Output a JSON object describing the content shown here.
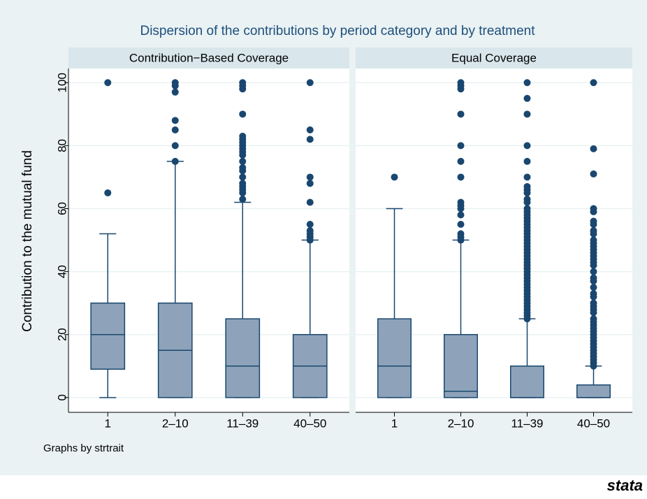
{
  "chart_data": {
    "type": "box",
    "title": "Dispersion of the contributions by period category and by treatment",
    "ylabel": "Contribution to the mutual fund",
    "note": "Graphs by strtrait",
    "logo": "stata",
    "categories": [
      "1",
      "2–10",
      "11–39",
      "40–50"
    ],
    "ylim": [
      -4.7,
      104.5
    ],
    "yticks": [
      0,
      20,
      40,
      60,
      80,
      100
    ],
    "grid": true,
    "box_color": "#8ea3b9",
    "line_color": "#1a476f",
    "panels": [
      {
        "title": "Contribution−Based Coverage",
        "boxes": [
          {
            "min": 0,
            "q1": 9,
            "median": 20,
            "q3": 30,
            "max": 52,
            "outliers": [
              65,
              100
            ]
          },
          {
            "min": 0,
            "q1": 0,
            "median": 15,
            "q3": 30,
            "max": 75,
            "outliers": [
              75,
              80,
              85,
              88,
              97,
              99,
              100
            ]
          },
          {
            "min": 0,
            "q1": 0,
            "median": 10,
            "q3": 25,
            "max": 62,
            "outliers": [
              63,
              65,
              66,
              67,
              68,
              70,
              72,
              73,
              75,
              77,
              78,
              79,
              80,
              81,
              82,
              83,
              90,
              98,
              99,
              100
            ]
          },
          {
            "min": 0,
            "q1": 0,
            "median": 10,
            "q3": 20,
            "max": 50,
            "outliers": [
              50,
              51,
              52,
              53,
              55,
              62,
              68,
              70,
              82,
              85,
              100
            ]
          }
        ]
      },
      {
        "title": "Equal Coverage",
        "boxes": [
          {
            "min": 0,
            "q1": 0,
            "median": 10,
            "q3": 25,
            "max": 60,
            "outliers": [
              70
            ]
          },
          {
            "min": 0,
            "q1": 0,
            "median": 2,
            "q3": 20,
            "max": 50,
            "outliers": [
              50,
              51,
              52,
              55,
              58,
              60,
              61,
              62,
              70,
              75,
              80,
              90,
              98,
              99,
              100
            ]
          },
          {
            "min": 0,
            "q1": 0,
            "median": 0,
            "q3": 10,
            "max": 25,
            "outliers": [
              25,
              26,
              27,
              28,
              29,
              30,
              31,
              32,
              33,
              34,
              35,
              36,
              37,
              38,
              39,
              40,
              41,
              42,
              43,
              44,
              45,
              46,
              47,
              48,
              49,
              50,
              51,
              52,
              53,
              54,
              55,
              56,
              57,
              58,
              59,
              60,
              62,
              63,
              65,
              66,
              67,
              70,
              75,
              80,
              90,
              95,
              100
            ]
          },
          {
            "min": 0,
            "q1": 0,
            "median": 0,
            "q3": 4,
            "max": 10,
            "outliers": [
              10,
              11,
              12,
              13,
              14,
              15,
              16,
              17,
              18,
              19,
              20,
              21,
              22,
              23,
              24,
              25,
              27,
              28,
              29,
              30,
              32,
              33,
              35,
              37,
              38,
              40,
              42,
              43,
              44,
              45,
              46,
              47,
              48,
              49,
              50,
              52,
              53,
              55,
              56,
              59,
              60,
              71,
              79,
              100
            ]
          }
        ]
      }
    ]
  }
}
